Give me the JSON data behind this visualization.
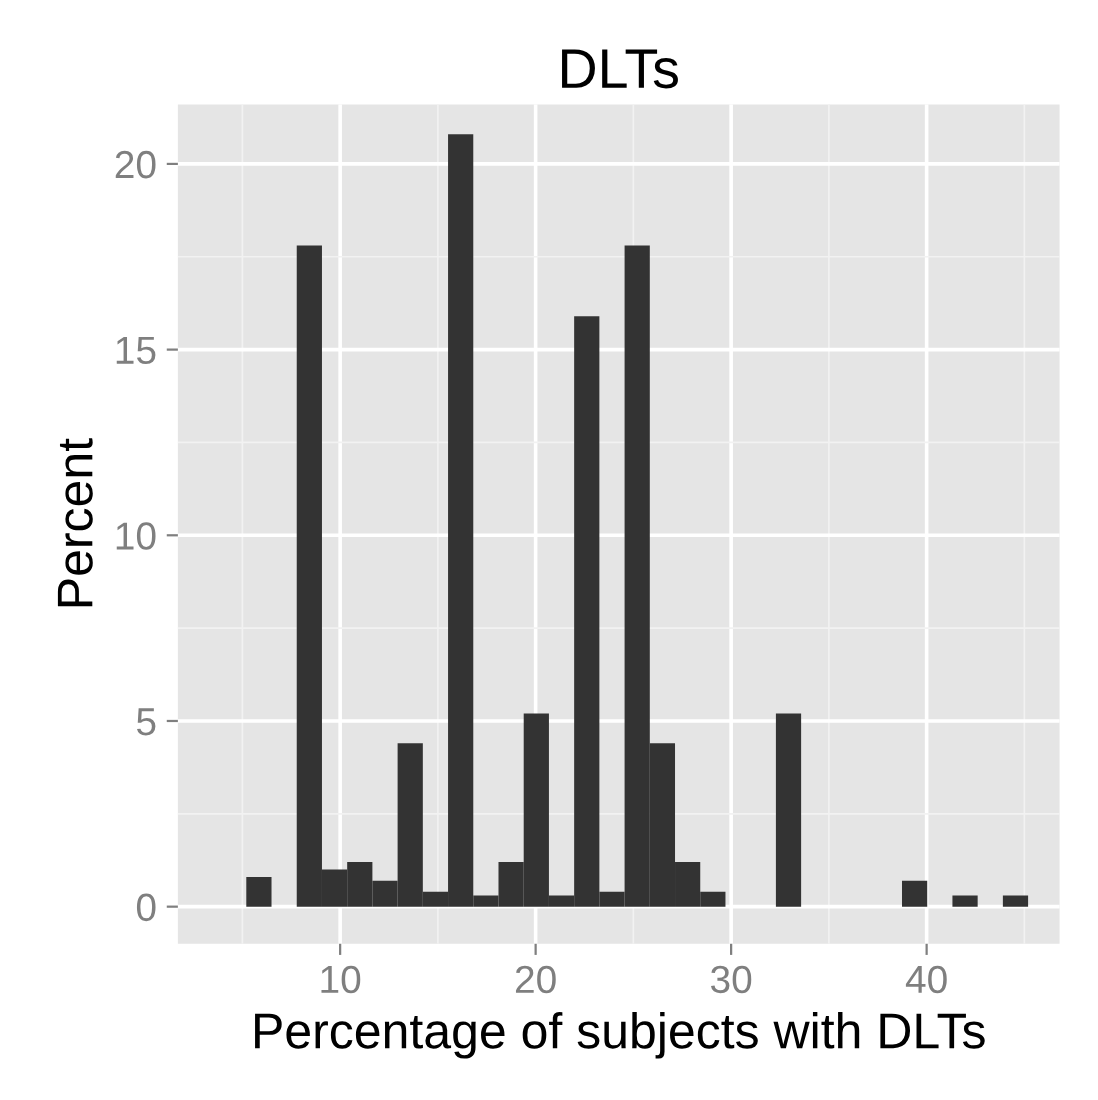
{
  "chart_data": {
    "type": "histogram",
    "title": "DLTs",
    "xlabel": "Percentage of subjects with DLTs",
    "ylabel": "Percent",
    "bins": [
      5.2,
      6.49,
      7.78,
      9.07,
      10.36,
      11.65,
      12.94,
      14.23,
      15.52,
      16.81,
      18.1,
      19.39,
      20.68,
      21.97,
      23.26,
      24.55,
      25.84,
      27.13,
      28.42,
      29.71,
      31.0,
      32.29,
      33.58,
      34.87,
      36.16,
      37.45,
      38.74,
      40.03,
      41.32,
      42.61,
      43.9,
      45.19
    ],
    "values": [
      0.8,
      0,
      17.8,
      1.0,
      1.2,
      0.7,
      4.4,
      0.4,
      20.8,
      0.3,
      1.2,
      5.2,
      0.3,
      15.9,
      0.4,
      17.8,
      4.4,
      1.2,
      0.4,
      0,
      0,
      5.2,
      0,
      0,
      0,
      0,
      0.7,
      0,
      0.3,
      0,
      0.3
    ],
    "color": "#333333",
    "xlim": [
      1.7,
      46.8
    ],
    "xticks": [
      10,
      20,
      30,
      40
    ],
    "ylim": [
      -1.0,
      21.6
    ],
    "yticks": [
      0,
      5,
      10,
      15,
      20
    ],
    "grid": true
  }
}
